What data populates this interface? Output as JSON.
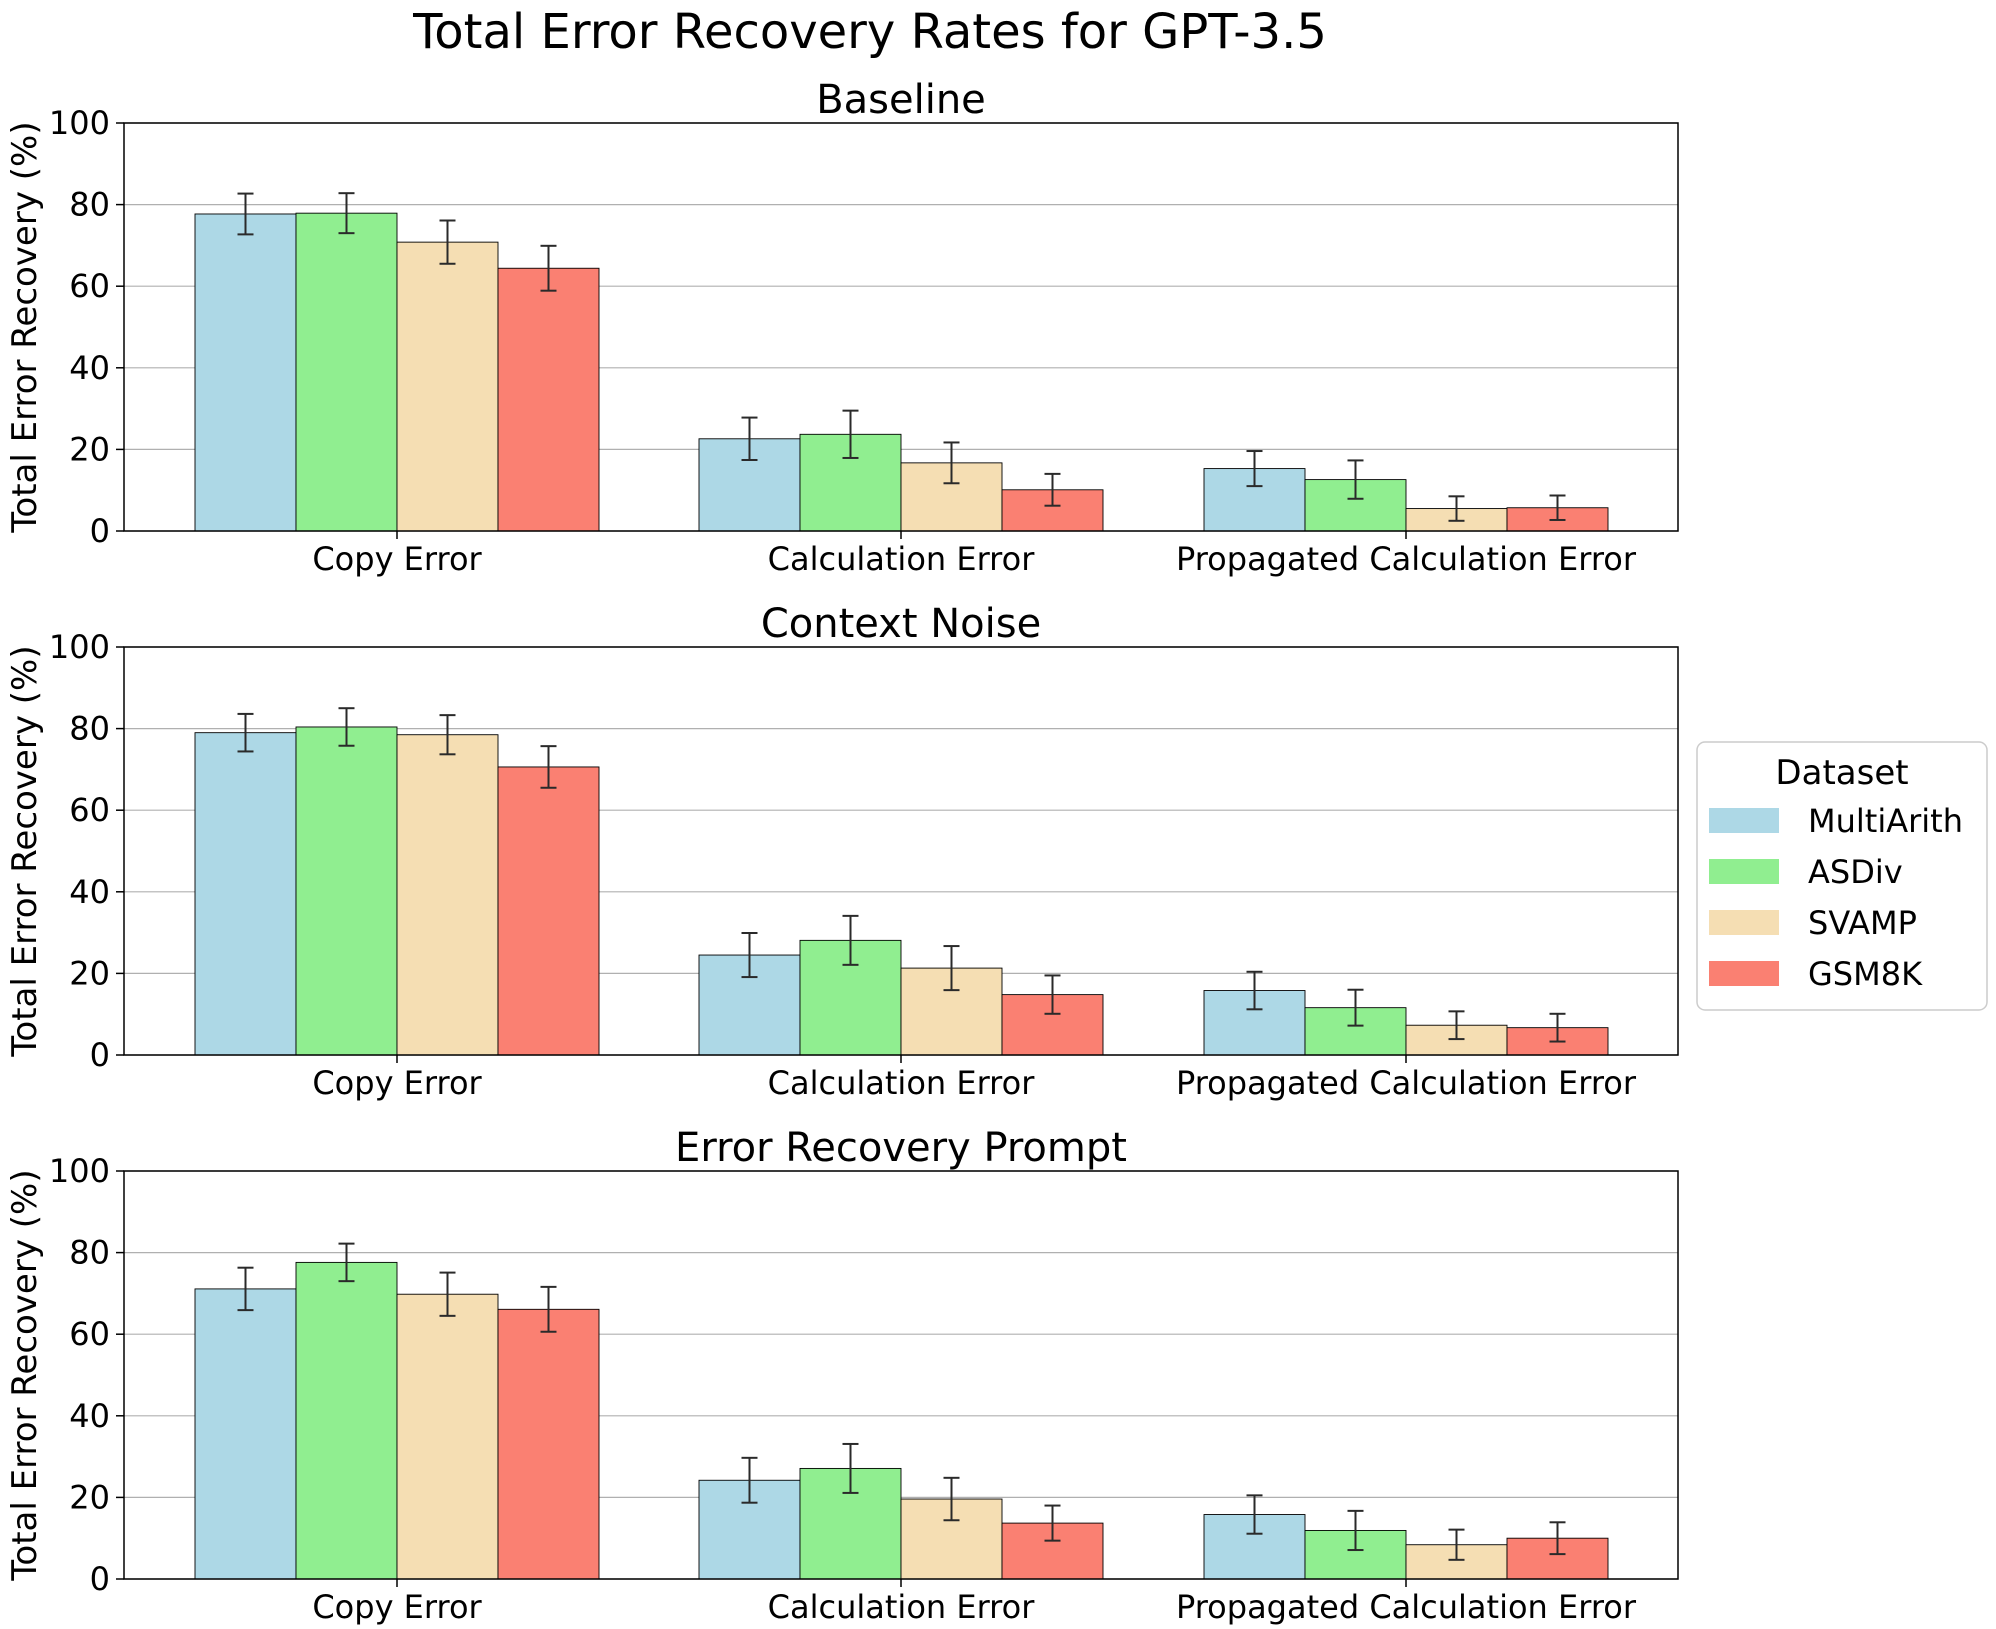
{
  "chart_data": {
    "type": "bar",
    "title": "Total Error Recovery Rates for GPT-3.5",
    "ylabel": "Total Error Recovery (%)",
    "ylim": [
      0,
      100
    ],
    "yticks": [
      0,
      20,
      40,
      60,
      80,
      100
    ],
    "categories": [
      "Copy Error",
      "Calculation Error",
      "Propagated Calculation Error"
    ],
    "legend": {
      "title": "Dataset",
      "placement": "center-right",
      "entries": [
        "MultiArith",
        "ASDiv",
        "SVAMP",
        "GSM8K"
      ]
    },
    "colors": {
      "MultiArith": "#add8e6",
      "ASDiv": "#90ee90",
      "SVAMP": "#f5deb3",
      "GSM8K": "#fa8072"
    },
    "panels": [
      {
        "title": "Baseline",
        "series": [
          {
            "name": "MultiArith",
            "values": [
              77.7,
              22.6,
              15.3
            ],
            "errors": [
              5.0,
              5.2,
              4.3
            ]
          },
          {
            "name": "ASDiv",
            "values": [
              77.9,
              23.7,
              12.6
            ],
            "errors": [
              4.9,
              5.8,
              4.7
            ]
          },
          {
            "name": "SVAMP",
            "values": [
              70.8,
              16.7,
              5.5
            ],
            "errors": [
              5.3,
              5.0,
              3.0
            ]
          },
          {
            "name": "GSM8K",
            "values": [
              64.4,
              10.1,
              5.7
            ],
            "errors": [
              5.5,
              3.9,
              3.0
            ]
          }
        ]
      },
      {
        "title": "Context Noise",
        "series": [
          {
            "name": "MultiArith",
            "values": [
              79.0,
              24.5,
              15.8
            ],
            "errors": [
              4.6,
              5.4,
              4.6
            ]
          },
          {
            "name": "ASDiv",
            "values": [
              80.4,
              28.1,
              11.6
            ],
            "errors": [
              4.6,
              6.0,
              4.4
            ]
          },
          {
            "name": "SVAMP",
            "values": [
              78.5,
              21.3,
              7.3
            ],
            "errors": [
              4.8,
              5.4,
              3.4
            ]
          },
          {
            "name": "GSM8K",
            "values": [
              70.6,
              14.8,
              6.7
            ],
            "errors": [
              5.1,
              4.7,
              3.4
            ]
          }
        ]
      },
      {
        "title": "Error Recovery Prompt",
        "series": [
          {
            "name": "MultiArith",
            "values": [
              71.1,
              24.2,
              15.8
            ],
            "errors": [
              5.2,
              5.5,
              4.7
            ]
          },
          {
            "name": "ASDiv",
            "values": [
              77.6,
              27.1,
              11.9
            ],
            "errors": [
              4.6,
              6.0,
              4.8
            ]
          },
          {
            "name": "SVAMP",
            "values": [
              69.8,
              19.6,
              8.4
            ],
            "errors": [
              5.3,
              5.2,
              3.7
            ]
          },
          {
            "name": "GSM8K",
            "values": [
              66.1,
              13.7,
              10.0
            ],
            "errors": [
              5.5,
              4.3,
              3.9
            ]
          }
        ]
      }
    ]
  }
}
